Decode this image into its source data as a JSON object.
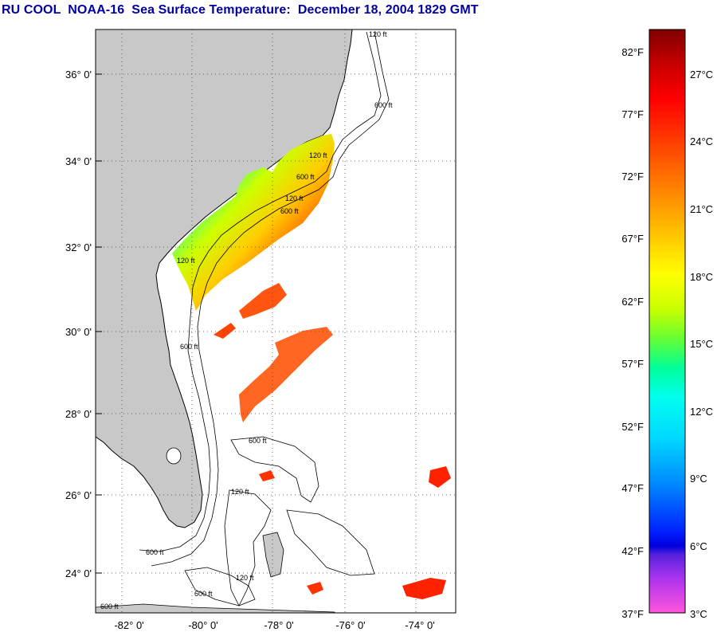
{
  "title": "RU COOL  NOAA-16  Sea Surface Temperature:  December 18, 2004 1829 GMT",
  "map": {
    "lat_labels": [
      "36° 0'",
      "34° 0'",
      "32° 0'",
      "30° 0'",
      "28° 0'",
      "26° 0'",
      "24° 0'"
    ],
    "lon_labels": [
      "-82° 0'",
      "-80° 0'",
      "-78° 0'",
      "-76° 0'",
      "-74° 0'"
    ],
    "contour_labels": [
      "120 ft",
      "600 ft",
      "120 ft",
      "600 ft",
      "120 ft",
      "600 ft",
      "120 ft",
      "600 ft",
      "600 ft",
      "120 ft",
      "600 ft",
      "600 ft",
      "120 ft",
      "600 ft"
    ],
    "land_color": "#c8c8c8",
    "ocean_color": "#ffffff"
  },
  "colorbar": {
    "fahrenheit_labels": [
      "82°F",
      "77°F",
      "72°F",
      "67°F",
      "62°F",
      "57°F",
      "52°F",
      "47°F",
      "42°F",
      "37°F"
    ],
    "celsius_labels": [
      "27°C",
      "24°C",
      "21°C",
      "18°C",
      "15°C",
      "12°C",
      "9°C",
      "6°C",
      "3°C"
    ]
  }
}
